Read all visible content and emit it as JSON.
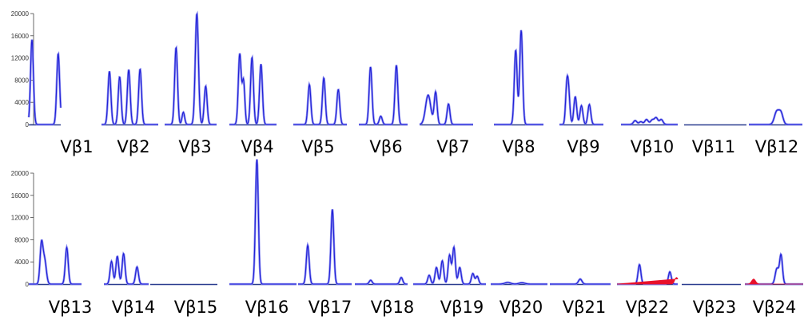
{
  "chart_data": {
    "type": "line",
    "description_units": "fluorescence intensity",
    "colors": {
      "trace": "#1f1fd6",
      "trace_light": "#8a8cf0",
      "baseline": "#2b3d8f",
      "peak_red": "#e8102a"
    },
    "rows": [
      {
        "yticks": [
          0,
          4000,
          8000,
          12000,
          16000,
          20000
        ],
        "ylim": [
          0,
          20000
        ],
        "panels": [
          {
            "label": "Vβ1",
            "peaks": [
              [
                0.1,
                15300,
                1.0
              ],
              [
                0.92,
                12800,
                1.0
              ],
              [
                1.05,
                1000,
                0.8
              ]
            ]
          },
          {
            "label": "Vβ2",
            "peaks": [
              [
                0.14,
                9600,
                1.0
              ],
              [
                0.32,
                8600,
                1.0
              ],
              [
                0.48,
                9900,
                1.0
              ],
              [
                0.68,
                10000,
                1.0
              ]
            ]
          },
          {
            "label": "Vβ3",
            "peaks": [
              [
                0.22,
                13900,
                1.0
              ],
              [
                0.36,
                2200,
                0.9
              ],
              [
                0.62,
                20000,
                1.1
              ],
              [
                0.79,
                6900,
                1.0
              ]
            ]
          },
          {
            "label": "Vβ4",
            "peaks": [
              [
                0.22,
                12700,
                1.0
              ],
              [
                0.3,
                7800,
                0.9
              ],
              [
                0.48,
                12100,
                1.0
              ],
              [
                0.67,
                10900,
                1.0
              ]
            ]
          },
          {
            "label": "Vβ5",
            "peaks": [
              [
                0.3,
                7200,
                1.0
              ],
              [
                0.57,
                8400,
                1.0
              ],
              [
                0.84,
                6300,
                1.0
              ]
            ]
          },
          {
            "label": "Vβ6",
            "peaks": [
              [
                0.24,
                10400,
                1.0
              ],
              [
                0.45,
                1500,
                1.0
              ],
              [
                0.77,
                10700,
                1.0
              ]
            ]
          },
          {
            "label": "Vβ7",
            "peaks": [
              [
                0.16,
                5300,
                1.8
              ],
              [
                0.3,
                5800,
                1.0
              ],
              [
                0.54,
                3700,
                1.0
              ]
            ]
          },
          {
            "label": "Vβ8",
            "peaks": [
              [
                0.44,
                13400,
                1.0
              ],
              [
                0.55,
                17000,
                1.0
              ]
            ]
          },
          {
            "label": "Vβ9",
            "peaks": [
              [
                0.2,
                6800,
                1.0
              ],
              [
                0.16,
                4200,
                0.8
              ],
              [
                0.36,
                5000,
                1.0
              ],
              [
                0.5,
                3400,
                1.0
              ],
              [
                0.68,
                3600,
                1.0
              ]
            ]
          },
          {
            "label": "Vβ10",
            "peaks": [
              [
                0.25,
                700,
                1.2
              ],
              [
                0.35,
                500,
                1.2
              ],
              [
                0.45,
                900,
                1.2
              ],
              [
                0.55,
                800,
                1.2
              ],
              [
                0.62,
                1200,
                1.2
              ],
              [
                0.71,
                900,
                1.2
              ]
            ]
          },
          {
            "label": "Vβ11",
            "peaks": []
          },
          {
            "label": "Vβ12",
            "peaks": [
              [
                0.52,
                2300,
                1.6
              ],
              [
                0.6,
                2000,
                1.4
              ]
            ]
          }
        ]
      },
      {
        "yticks": [
          0,
          4000,
          8000,
          12000,
          16000,
          20000
        ],
        "ylim": [
          0,
          20000
        ],
        "panels": [
          {
            "label": "Vβ13",
            "peaks": [
              [
                0.24,
                7000,
                1.0
              ],
              [
                0.3,
                4300,
                1.2
              ],
              [
                0.72,
                6600,
                1.0
              ]
            ]
          },
          {
            "label": "Vβ14",
            "peaks": [
              [
                0.17,
                4100,
                1.0
              ],
              [
                0.3,
                5000,
                1.0
              ],
              [
                0.44,
                5500,
                1.0
              ],
              [
                0.74,
                3100,
                1.0
              ]
            ]
          },
          {
            "label": "Vβ15",
            "peaks": []
          },
          {
            "label": "Vβ16",
            "peaks": [
              [
                0.41,
                22500,
                1.0
              ]
            ]
          },
          {
            "label": "Vβ17",
            "peaks": [
              [
                0.18,
                7000,
                1.0
              ],
              [
                0.64,
                13500,
                1.0
              ]
            ]
          },
          {
            "label": "Vβ18",
            "peaks": [
              [
                0.3,
                700,
                1.0
              ],
              [
                0.88,
                1200,
                1.0
              ]
            ]
          },
          {
            "label": "Vβ19",
            "peaks": [
              [
                0.22,
                1600,
                1.0
              ],
              [
                0.32,
                3000,
                1.0
              ],
              [
                0.4,
                4200,
                1.0
              ],
              [
                0.5,
                5200,
                1.0
              ],
              [
                0.56,
                6600,
                1.0
              ],
              [
                0.64,
                3000,
                1.0
              ],
              [
                0.82,
                1900,
                1.0
              ],
              [
                0.88,
                1400,
                1.0
              ]
            ]
          },
          {
            "label": "Vβ20",
            "peaks": [
              [
                0.3,
                300,
                2.0
              ],
              [
                0.55,
                250,
                2.0
              ]
            ]
          },
          {
            "label": "Vβ21",
            "peaks": [
              [
                0.5,
                900,
                1.2
              ]
            ]
          },
          {
            "label": "Vβ22",
            "peaks": [
              [
                0.37,
                3500,
                1.0
              ],
              [
                0.87,
                2200,
                1.0
              ]
            ],
            "red_peaks": [
              [
                0.98,
                1200,
                1.2
              ]
            ]
          },
          {
            "label": "Vβ23",
            "peaks": []
          },
          {
            "label": "Vβ24",
            "peaks": [
              [
                0.55,
                2800,
                1.2
              ],
              [
                0.62,
                5200,
                1.0
              ]
            ],
            "red_peaks": [
              [
                0.15,
                900,
                1.4
              ]
            ]
          }
        ]
      }
    ]
  }
}
